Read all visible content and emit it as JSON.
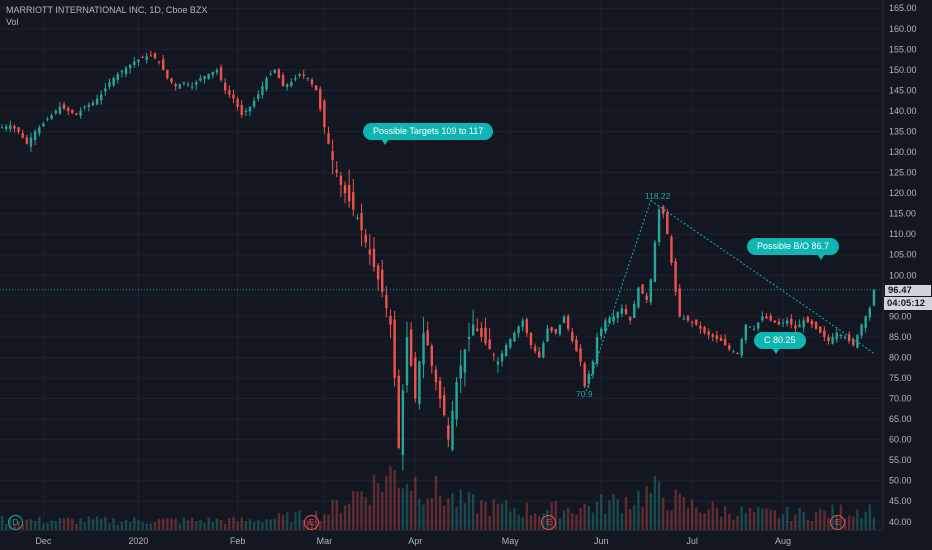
{
  "header": {
    "title": "MARRIOTT INTERNATIONAL INC, 1D, Cboe BZX",
    "vol_label": "Vol"
  },
  "price_axis": {
    "ticks": [
      "165.00",
      "160.00",
      "155.00",
      "150.00",
      "145.00",
      "140.00",
      "135.00",
      "130.00",
      "125.00",
      "120.00",
      "115.00",
      "110.00",
      "105.00",
      "100.00",
      "95.00",
      "90.00",
      "85.00",
      "80.00",
      "75.00",
      "70.00",
      "65.00",
      "60.00",
      "55.00",
      "50.00",
      "45.00",
      "40.00"
    ],
    "current_price": "96.47",
    "countdown": "04:05:12"
  },
  "time_axis": {
    "labels": [
      "Dec",
      "2020",
      "Feb",
      "Mar",
      "Apr",
      "May",
      "Jun",
      "Jul",
      "Aug"
    ]
  },
  "annotations": {
    "targets": "Possible Targets  109 to 117",
    "breakout": "Possible B/O  86.7",
    "support": "C 80.25",
    "peak": "118.22",
    "trough": "70.9"
  },
  "events": {
    "dividend": "D",
    "earnings": "E"
  },
  "colors": {
    "up": "#26a69a",
    "down": "#ef5350",
    "accent": "#0fb5b0",
    "background": "#131722"
  },
  "chart_data": {
    "type": "candlestick",
    "title": "MARRIOTT INTERNATIONAL INC, 1D, Cboe BZX",
    "ylim": [
      38,
      167
    ],
    "y_ticks": [
      165,
      160,
      155,
      150,
      145,
      140,
      135,
      130,
      125,
      120,
      115,
      110,
      105,
      100,
      95,
      90,
      85,
      80,
      75,
      70,
      65,
      60,
      55,
      50,
      45,
      40
    ],
    "x_labels": [
      "Dec",
      "2020",
      "Feb",
      "Mar",
      "Apr",
      "May",
      "Jun",
      "Jul",
      "Aug"
    ],
    "current_price": 96.47,
    "close_path": [
      [
        0,
        136
      ],
      [
        2,
        136.5
      ],
      [
        4,
        135
      ],
      [
        6,
        132
      ],
      [
        8,
        135
      ],
      [
        10,
        137
      ],
      [
        12,
        139
      ],
      [
        14,
        141
      ],
      [
        16,
        140
      ],
      [
        18,
        139
      ],
      [
        20,
        141
      ],
      [
        22,
        142
      ],
      [
        24,
        144
      ],
      [
        26,
        147
      ],
      [
        28,
        149
      ],
      [
        30,
        150.5
      ],
      [
        32,
        152
      ],
      [
        34,
        153
      ],
      [
        36,
        153.5
      ],
      [
        38,
        152
      ],
      [
        40,
        148
      ],
      [
        42,
        146
      ],
      [
        44,
        147
      ],
      [
        46,
        146
      ],
      [
        48,
        148
      ],
      [
        50,
        149
      ],
      [
        52,
        150
      ],
      [
        54,
        145
      ],
      [
        56,
        143
      ],
      [
        58,
        139
      ],
      [
        60,
        141
      ],
      [
        62,
        144
      ],
      [
        64,
        148
      ],
      [
        66,
        150
      ],
      [
        68,
        146
      ],
      [
        70,
        147
      ],
      [
        72,
        149
      ],
      [
        74,
        148
      ],
      [
        76,
        145
      ],
      [
        78,
        136
      ],
      [
        80,
        128
      ],
      [
        82,
        122
      ],
      [
        84,
        118
      ],
      [
        86,
        114
      ],
      [
        88,
        108
      ],
      [
        90,
        102
      ],
      [
        92,
        96
      ],
      [
        94,
        88
      ],
      [
        95,
        75
      ],
      [
        96,
        58
      ],
      [
        97,
        72
      ],
      [
        98,
        85
      ],
      [
        99,
        78
      ],
      [
        100,
        70
      ],
      [
        101,
        79
      ],
      [
        102,
        86
      ],
      [
        103,
        83
      ],
      [
        104,
        78
      ],
      [
        105,
        74
      ],
      [
        106,
        70
      ],
      [
        107,
        66
      ],
      [
        108,
        60
      ],
      [
        110,
        74
      ],
      [
        112,
        82
      ],
      [
        114,
        88
      ],
      [
        116,
        85
      ],
      [
        118,
        82
      ],
      [
        120,
        79
      ],
      [
        122,
        83
      ],
      [
        124,
        86
      ],
      [
        126,
        89
      ],
      [
        128,
        83
      ],
      [
        130,
        80
      ],
      [
        132,
        87
      ],
      [
        134,
        86
      ],
      [
        136,
        90
      ],
      [
        138,
        84
      ],
      [
        140,
        79
      ],
      [
        141,
        73
      ],
      [
        143,
        79
      ],
      [
        144,
        85
      ],
      [
        146,
        89
      ],
      [
        148,
        90
      ],
      [
        150,
        92
      ],
      [
        152,
        89
      ],
      [
        154,
        97
      ],
      [
        156,
        94
      ],
      [
        157,
        99
      ],
      [
        158,
        108
      ],
      [
        159,
        116
      ],
      [
        160,
        115
      ],
      [
        161,
        110
      ],
      [
        162,
        103
      ],
      [
        163,
        96
      ],
      [
        164,
        90
      ],
      [
        166,
        89
      ],
      [
        168,
        88
      ],
      [
        170,
        86
      ],
      [
        172,
        85
      ],
      [
        174,
        84
      ],
      [
        176,
        82
      ],
      [
        178,
        81
      ],
      [
        180,
        88
      ],
      [
        182,
        87
      ],
      [
        184,
        90
      ],
      [
        186,
        89
      ],
      [
        188,
        88
      ],
      [
        190,
        89
      ],
      [
        192,
        87
      ],
      [
        194,
        89
      ],
      [
        196,
        88
      ],
      [
        198,
        86
      ],
      [
        200,
        84
      ],
      [
        202,
        86
      ],
      [
        204,
        85
      ],
      [
        206,
        83
      ],
      [
        208,
        88
      ],
      [
        210,
        92
      ],
      [
        211,
        96.47
      ]
    ],
    "volume_series": [
      [
        0,
        3
      ],
      [
        20,
        3
      ],
      [
        40,
        3
      ],
      [
        60,
        3
      ],
      [
        78,
        5
      ],
      [
        85,
        11
      ],
      [
        90,
        14
      ],
      [
        95,
        18
      ],
      [
        100,
        15
      ],
      [
        110,
        9
      ],
      [
        120,
        7
      ],
      [
        130,
        6
      ],
      [
        140,
        7
      ],
      [
        150,
        9
      ],
      [
        158,
        12
      ],
      [
        165,
        8
      ],
      [
        175,
        6
      ],
      [
        185,
        5
      ],
      [
        195,
        5
      ],
      [
        205,
        6
      ],
      [
        211,
        7
      ]
    ],
    "events": [
      {
        "type": "dividend",
        "x": 3
      },
      {
        "type": "earnings",
        "x": 78
      },
      {
        "type": "earnings",
        "x": 137
      },
      {
        "type": "earnings",
        "x": 209
      }
    ],
    "trendlines": [
      {
        "from": [
          141,
          70.9
        ],
        "to": [
          157,
          118.22
        ]
      },
      {
        "from": [
          157,
          118.22
        ],
        "to": [
          211,
          81
        ]
      }
    ]
  }
}
